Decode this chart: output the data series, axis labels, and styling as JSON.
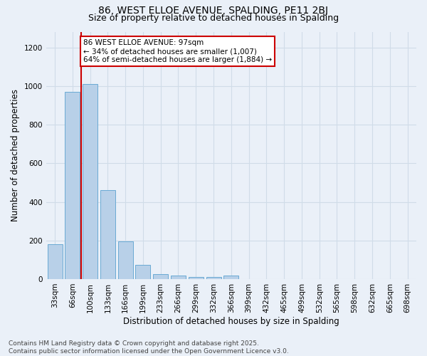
{
  "title": "86, WEST ELLOE AVENUE, SPALDING, PE11 2BJ",
  "subtitle": "Size of property relative to detached houses in Spalding",
  "xlabel": "Distribution of detached houses by size in Spalding",
  "ylabel": "Number of detached properties",
  "bar_color": "#b8d0e8",
  "bar_edge_color": "#6aaad4",
  "background_color": "#eaf0f8",
  "grid_color": "#d0dce8",
  "bin_labels": [
    "33sqm",
    "66sqm",
    "100sqm",
    "133sqm",
    "166sqm",
    "199sqm",
    "233sqm",
    "266sqm",
    "299sqm",
    "332sqm",
    "366sqm",
    "399sqm",
    "432sqm",
    "465sqm",
    "499sqm",
    "532sqm",
    "565sqm",
    "598sqm",
    "632sqm",
    "665sqm",
    "698sqm"
  ],
  "bar_heights": [
    180,
    970,
    1010,
    460,
    195,
    75,
    25,
    20,
    10,
    10,
    20,
    0,
    0,
    0,
    0,
    0,
    0,
    0,
    0,
    0,
    0
  ],
  "red_line_bin_index": 2,
  "ylim": [
    0,
    1280
  ],
  "yticks": [
    0,
    200,
    400,
    600,
    800,
    1000,
    1200
  ],
  "annotation_text": "86 WEST ELLOE AVENUE: 97sqm\n← 34% of detached houses are smaller (1,007)\n64% of semi-detached houses are larger (1,884) →",
  "annotation_box_color": "#ffffff",
  "annotation_box_edge": "#cc0000",
  "red_line_color": "#cc0000",
  "footer_text": "Contains HM Land Registry data © Crown copyright and database right 2025.\nContains public sector information licensed under the Open Government Licence v3.0.",
  "title_fontsize": 10,
  "subtitle_fontsize": 9,
  "axis_label_fontsize": 8.5,
  "tick_fontsize": 7.5,
  "annotation_fontsize": 7.5,
  "footer_fontsize": 6.5
}
